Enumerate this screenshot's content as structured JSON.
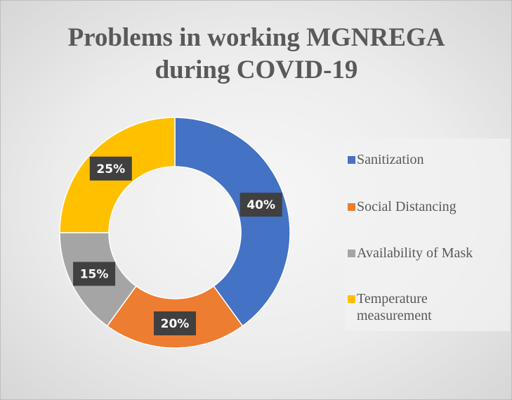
{
  "chart_data": {
    "type": "donut",
    "title": "Problems in working MGNREGA during COVID-19",
    "categories": [
      "Sanitization",
      "Social Distancing",
      "Availability of Mask",
      "Temperature measurement"
    ],
    "values": [
      40,
      20,
      15,
      25
    ],
    "value_labels": [
      "40%",
      "20%",
      "15%",
      "25%"
    ],
    "colors": [
      "#4472c4",
      "#ed7d31",
      "#a5a5a5",
      "#ffc000"
    ],
    "legend": "right"
  }
}
